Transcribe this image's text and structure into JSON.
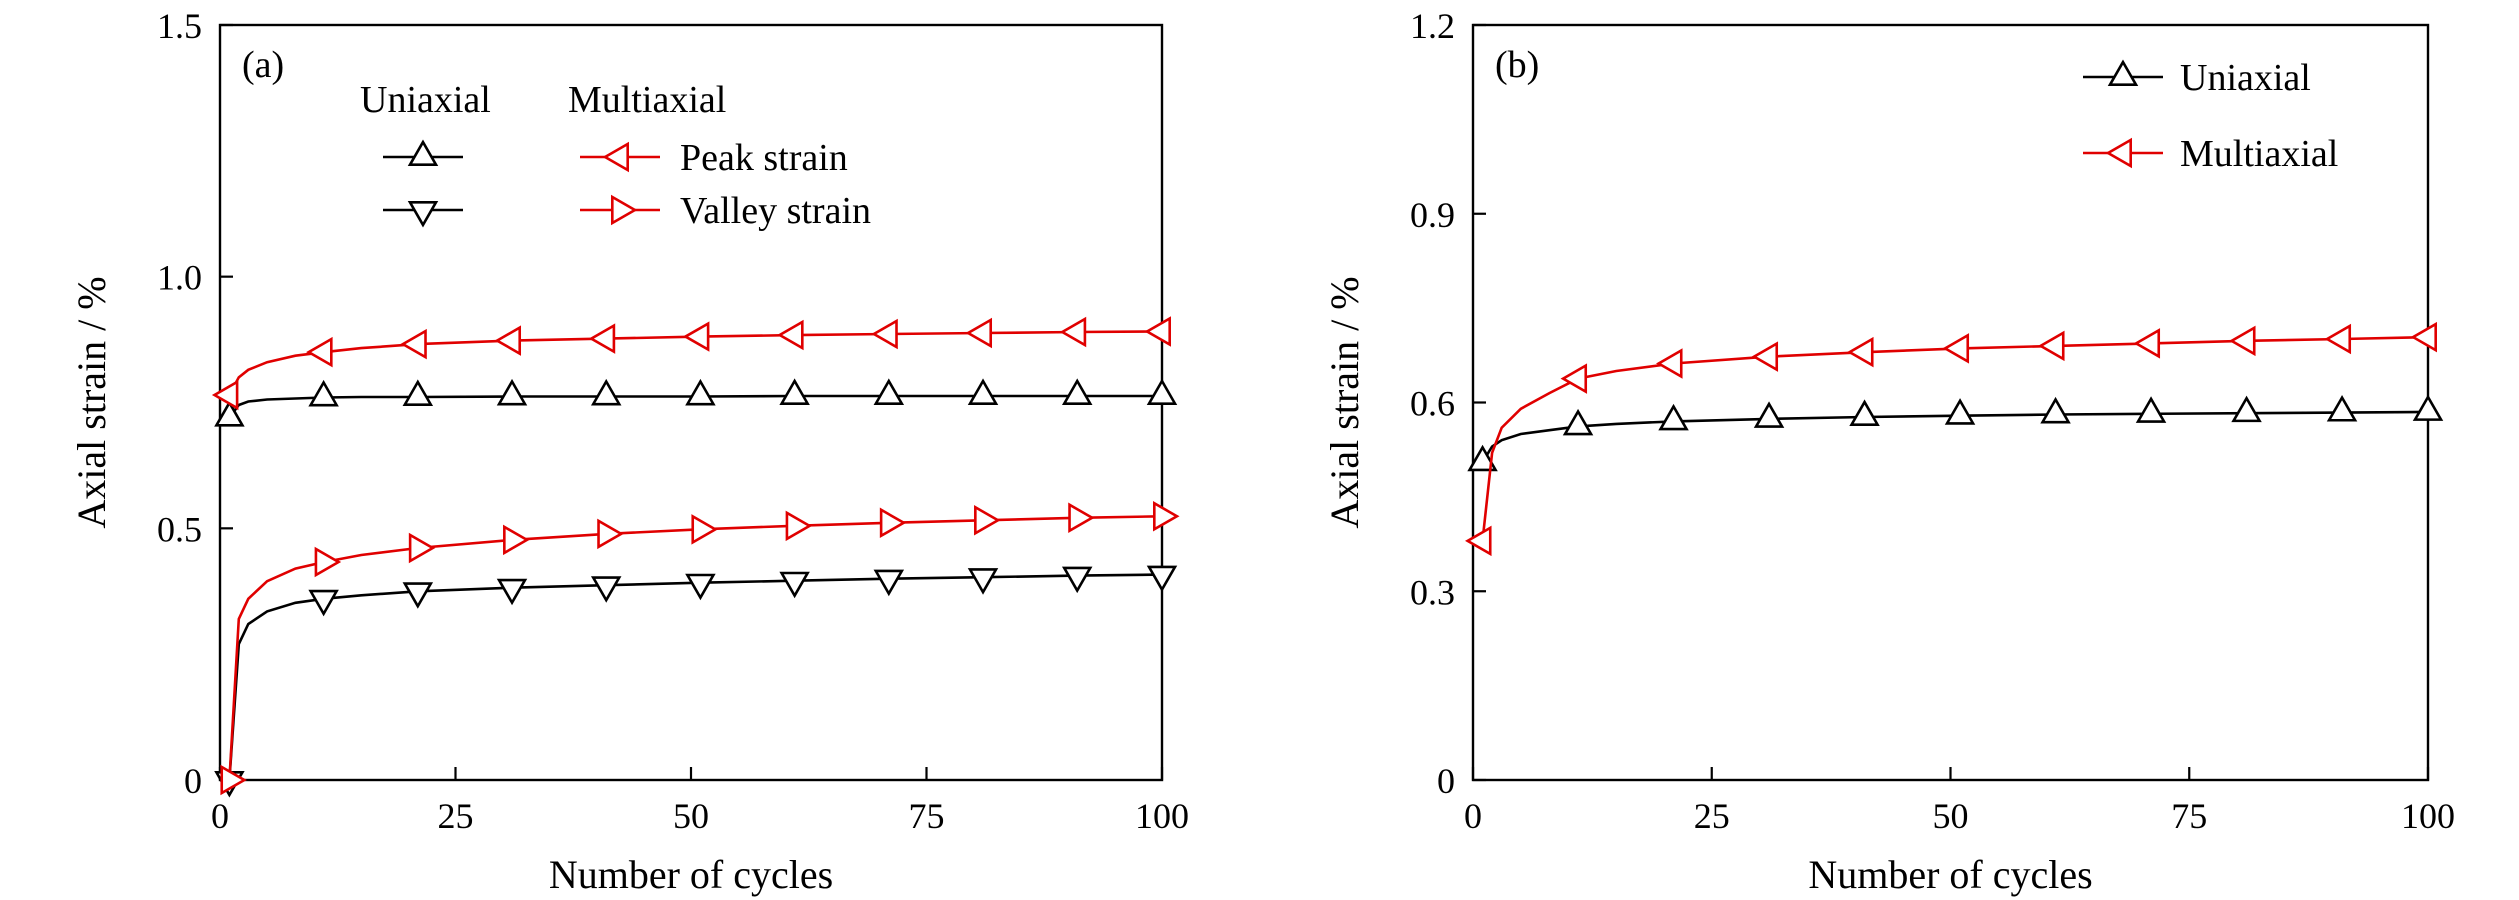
{
  "colors": {
    "uniaxial": "#000000",
    "multiaxial": "#e00000",
    "axes": "#000000"
  },
  "chart_data": [
    {
      "type": "line",
      "panel_label": "(a)",
      "xlabel": "Number of cycles",
      "ylabel": "Axial strain / %",
      "xlim": [
        0,
        100
      ],
      "ylim": [
        0,
        1.5
      ],
      "xticks": [
        0,
        25,
        50,
        75,
        100
      ],
      "xtick_labels": [
        "0",
        "25",
        "50",
        "75",
        "100"
      ],
      "yticks": [
        0,
        0.5,
        1.0,
        1.5
      ],
      "ytick_labels": [
        "0",
        "0.5",
        "1.0",
        "1.5"
      ],
      "grid": false,
      "legend": {
        "placement": "top-left",
        "column_headers": [
          "Uniaxial",
          "Multiaxial"
        ],
        "row_labels": [
          "Peak strain",
          "Valley strain"
        ]
      },
      "series": [
        {
          "loading": "uniaxial",
          "kind": "peak",
          "color": "#000000",
          "marker": "triangle-up",
          "x": [
            1,
            2,
            3,
            5,
            8,
            11,
            15,
            21,
            31,
            41,
            51,
            61,
            71,
            81,
            91,
            100
          ],
          "y": [
            0.72,
            0.745,
            0.752,
            0.756,
            0.758,
            0.76,
            0.761,
            0.761,
            0.762,
            0.762,
            0.762,
            0.763,
            0.763,
            0.763,
            0.763,
            0.763
          ],
          "marker_x": [
            1,
            11,
            21,
            31,
            41,
            51,
            61,
            71,
            81,
            91,
            100
          ]
        },
        {
          "loading": "uniaxial",
          "kind": "valley",
          "color": "#000000",
          "marker": "triangle-down",
          "x": [
            1,
            2,
            3,
            5,
            8,
            11,
            15,
            21,
            31,
            41,
            51,
            61,
            71,
            81,
            91,
            100
          ],
          "y": [
            0.0,
            0.27,
            0.31,
            0.335,
            0.352,
            0.36,
            0.367,
            0.375,
            0.382,
            0.387,
            0.392,
            0.396,
            0.4,
            0.403,
            0.406,
            0.408
          ],
          "marker_x": [
            1,
            11,
            21,
            31,
            41,
            51,
            61,
            71,
            81,
            91,
            100
          ]
        },
        {
          "loading": "multiaxial",
          "kind": "peak",
          "color": "#e00000",
          "marker": "triangle-left",
          "x": [
            1,
            2,
            3,
            5,
            8,
            11,
            15,
            21,
            31,
            41,
            51,
            61,
            71,
            81,
            91,
            100
          ],
          "y": [
            0.765,
            0.8,
            0.815,
            0.83,
            0.843,
            0.85,
            0.858,
            0.866,
            0.873,
            0.877,
            0.881,
            0.884,
            0.886,
            0.888,
            0.89,
            0.891
          ],
          "marker_x": [
            1,
            11,
            21,
            31,
            41,
            51,
            61,
            71,
            81,
            91,
            100
          ]
        },
        {
          "loading": "multiaxial",
          "kind": "valley",
          "color": "#e00000",
          "marker": "triangle-right",
          "x": [
            1,
            2,
            3,
            5,
            8,
            11,
            15,
            21,
            31,
            41,
            51,
            61,
            71,
            81,
            91,
            100
          ],
          "y": [
            0.0,
            0.32,
            0.36,
            0.395,
            0.42,
            0.433,
            0.447,
            0.461,
            0.477,
            0.489,
            0.498,
            0.505,
            0.511,
            0.516,
            0.521,
            0.524
          ],
          "marker_x": [
            1,
            11,
            21,
            31,
            41,
            51,
            61,
            71,
            81,
            91,
            100
          ]
        }
      ]
    },
    {
      "type": "line",
      "panel_label": "(b)",
      "xlabel": "Number of cycles",
      "ylabel": "Axial strain / %",
      "xlim": [
        0,
        100
      ],
      "ylim": [
        0,
        1.2
      ],
      "xticks": [
        0,
        25,
        50,
        75,
        100
      ],
      "xtick_labels": [
        "0",
        "25",
        "50",
        "75",
        "100"
      ],
      "yticks": [
        0,
        0.3,
        0.6,
        0.9,
        1.2
      ],
      "ytick_labels": [
        "0",
        "0.3",
        "0.6",
        "0.9",
        "1.2"
      ],
      "grid": false,
      "legend": {
        "placement": "top-right"
      },
      "series": [
        {
          "name": "Uniaxial",
          "color": "#000000",
          "marker": "triangle-up",
          "x": [
            1,
            2,
            3,
            5,
            8,
            11,
            15,
            21,
            31,
            41,
            51,
            61,
            71,
            81,
            91,
            100
          ],
          "y": [
            0.505,
            0.53,
            0.54,
            0.55,
            0.556,
            0.562,
            0.566,
            0.57,
            0.574,
            0.577,
            0.579,
            0.581,
            0.582,
            0.583,
            0.584,
            0.585
          ],
          "marker_x": [
            1,
            11,
            21,
            31,
            41,
            51,
            61,
            71,
            81,
            91,
            100
          ]
        },
        {
          "name": "Multiaxial",
          "color": "#e00000",
          "marker": "triangle-left",
          "x": [
            1,
            2,
            3,
            5,
            8,
            11,
            15,
            21,
            31,
            41,
            51,
            61,
            71,
            81,
            91,
            100
          ],
          "y": [
            0.38,
            0.52,
            0.56,
            0.59,
            0.615,
            0.638,
            0.65,
            0.662,
            0.673,
            0.68,
            0.686,
            0.69,
            0.694,
            0.698,
            0.701,
            0.704
          ],
          "marker_x": [
            1,
            11,
            21,
            31,
            41,
            51,
            61,
            71,
            81,
            91,
            100
          ]
        }
      ]
    }
  ]
}
